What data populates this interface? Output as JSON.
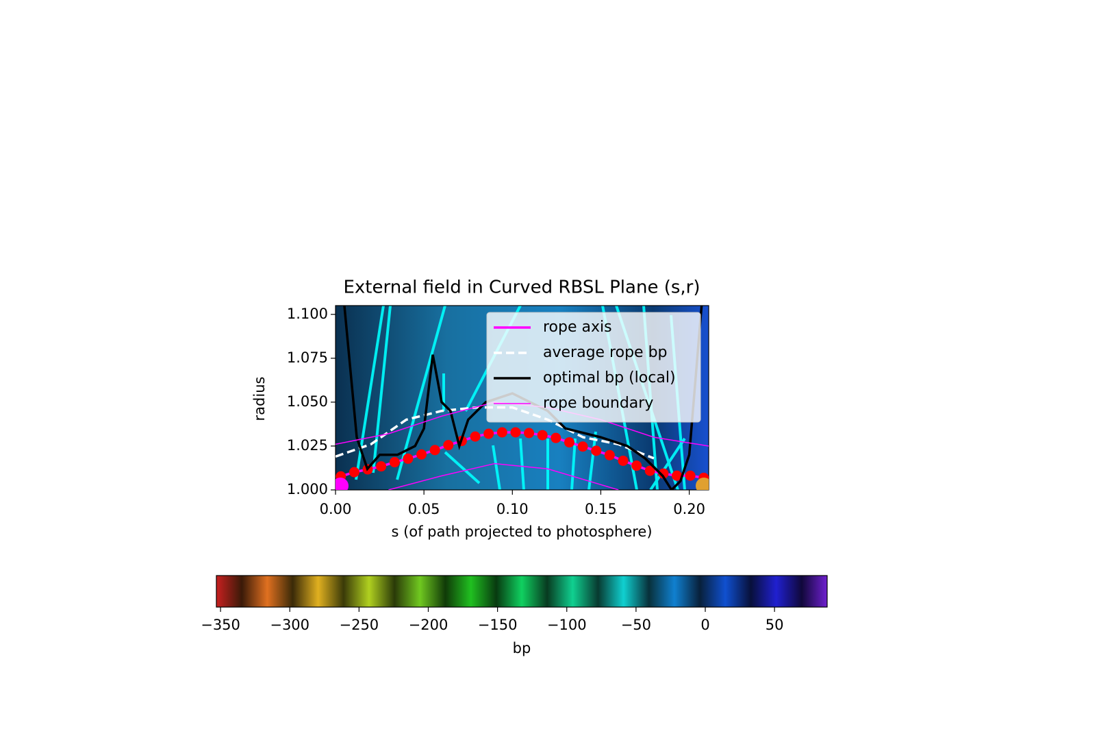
{
  "chart_data": {
    "type": "line",
    "title": "External field in Curved RBSL Plane (s,r)",
    "x_label": "s (of path projected to photosphere)",
    "y_label": "radius",
    "xlim": [
      0,
      0.211
    ],
    "ylim": [
      1.0,
      1.105
    ],
    "xticks": [
      {
        "value": 0,
        "label": "0.00"
      },
      {
        "value": 0.05,
        "label": "0.05"
      },
      {
        "value": 0.1,
        "label": "0.10"
      },
      {
        "value": 0.15,
        "label": "0.15"
      },
      {
        "value": 0.2,
        "label": "0.20"
      }
    ],
    "yticks": [
      {
        "value": 1.0,
        "label": "1.000"
      },
      {
        "value": 1.025,
        "label": "1.025"
      },
      {
        "value": 1.05,
        "label": "1.050"
      },
      {
        "value": 1.075,
        "label": "1.075"
      },
      {
        "value": 1.1,
        "label": "1.100"
      }
    ],
    "legend": "upper right",
    "series": [
      {
        "name": "rope axis",
        "color": "#ff00ff",
        "marker_color": "#ff0000",
        "x": [
          0.003,
          0.0106,
          0.0182,
          0.0258,
          0.0334,
          0.041,
          0.0486,
          0.0562,
          0.0638,
          0.0714,
          0.079,
          0.0866,
          0.0942,
          0.1018,
          0.1094,
          0.117,
          0.1246,
          0.1322,
          0.1398,
          0.1474,
          0.155,
          0.1626,
          0.1702,
          0.1778,
          0.1854,
          0.193,
          0.2006,
          0.2082
        ],
        "values": [
          1.0077,
          1.0101,
          1.0117,
          1.0134,
          1.0158,
          1.0178,
          1.0202,
          1.0227,
          1.0255,
          1.0279,
          1.0304,
          1.032,
          1.0328,
          1.0328,
          1.0324,
          1.0312,
          1.0296,
          1.0271,
          1.0247,
          1.0223,
          1.0198,
          1.0166,
          1.0138,
          1.0109,
          1.0093,
          1.0081,
          1.0081,
          1.0069
        ]
      },
      {
        "name": "average rope bp",
        "color": "#ffffff",
        "dashed": true,
        "x": [
          0,
          0.02,
          0.04,
          0.06,
          0.08,
          0.1,
          0.12,
          0.14,
          0.16,
          0.18
        ],
        "values": [
          1.019,
          1.026,
          1.04,
          1.045,
          1.047,
          1.047,
          1.04,
          1.03,
          1.026,
          1.018
        ]
      },
      {
        "name": "optimal bp (local)",
        "color": "#000000",
        "x": [
          0.005,
          0.012,
          0.018,
          0.025,
          0.035,
          0.045,
          0.05,
          0.055,
          0.06,
          0.065,
          0.07,
          0.075,
          0.085,
          0.1,
          0.12,
          0.13,
          0.15,
          0.165,
          0.175,
          0.185,
          0.19,
          0.195,
          0.2,
          0.207
        ],
        "values": [
          1.105,
          1.03,
          1.012,
          1.02,
          1.02,
          1.025,
          1.035,
          1.077,
          1.05,
          1.045,
          1.025,
          1.04,
          1.05,
          1.055,
          1.045,
          1.035,
          1.03,
          1.025,
          1.018,
          1.008,
          1.0,
          1.005,
          1.02,
          1.105
        ]
      },
      {
        "name": "rope boundary",
        "color": "#ff00ff",
        "thin": true,
        "x": [
          0,
          0.03,
          0.06,
          0.09,
          0.12,
          0.15,
          0.18,
          0.211
        ],
        "values": [
          1.026,
          1.032,
          1.042,
          1.05,
          1.047,
          1.04,
          1.03,
          1.025
        ]
      },
      {
        "color": "#ff00ff",
        "thin": true,
        "x": [
          0.03,
          0.06,
          0.09,
          0.12,
          0.15,
          0.16
        ],
        "values": [
          1.0,
          1.008,
          1.015,
          1.012,
          1.003,
          1.0
        ]
      }
    ],
    "colorbar": {
      "label": "bp",
      "lim": [
        -353,
        88
      ],
      "ticks": [
        {
          "value": -350,
          "label": "−350"
        },
        {
          "value": -300,
          "label": "−300"
        },
        {
          "value": -250,
          "label": "−250"
        },
        {
          "value": -200,
          "label": "−200"
        },
        {
          "value": -150,
          "label": "−150"
        },
        {
          "value": -100,
          "label": "−100"
        },
        {
          "value": -50,
          "label": "−50"
        },
        0,
        50
      ],
      "colors": [
        "#c82020",
        "#3a1a08",
        "#e07020",
        "#3a2a08",
        "#e0b020",
        "#3a3a08",
        "#b0d020",
        "#2a3a08",
        "#70c820",
        "#103a08",
        "#20c020",
        "#083a10",
        "#10d060",
        "#083a20",
        "#10d090",
        "#083a30",
        "#10d0d0",
        "#08303a",
        "#1080d0",
        "#08203a",
        "#1050d0",
        "#08103a",
        "#2020d0",
        "#10083a",
        "#7020d0"
      ]
    }
  }
}
